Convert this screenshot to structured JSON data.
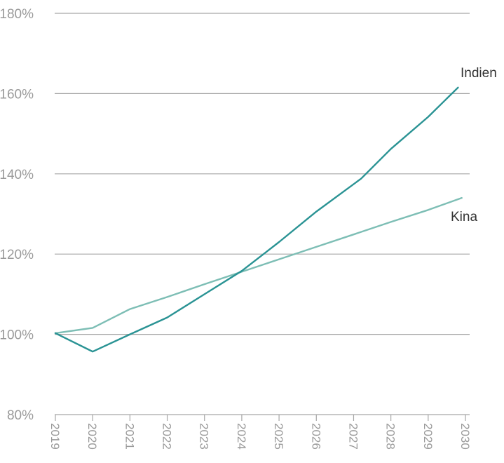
{
  "chart_data": {
    "type": "line",
    "x": [
      "2019",
      "2020",
      "2021",
      "2022",
      "2023",
      "2024",
      "2025",
      "2026",
      "2027",
      "2028",
      "2029",
      "2030"
    ],
    "x_values": [
      2019,
      2020,
      2021,
      2022,
      2023,
      2024,
      2025,
      2026,
      2027,
      2028,
      2029,
      2030
    ],
    "y_ticks": [
      80,
      100,
      120,
      140,
      160,
      180
    ],
    "y_tick_labels": [
      "80%",
      "100%",
      "120%",
      "140%",
      "160%",
      "180%"
    ],
    "ylim": [
      80,
      180
    ],
    "xlim": [
      2019,
      2030
    ],
    "grid": "horizontal",
    "legend": "inline labels at line ends",
    "series": [
      {
        "name": "Indien",
        "color": "#2a9394",
        "points": [
          [
            2019,
            100.3
          ],
          [
            2020,
            95.7
          ],
          [
            2021,
            100.0
          ],
          [
            2022,
            104.2
          ],
          [
            2023,
            110.0
          ],
          [
            2024,
            115.8
          ],
          [
            2025,
            123.0
          ],
          [
            2026,
            130.6
          ],
          [
            2027.2,
            138.8
          ],
          [
            2028,
            146.2
          ],
          [
            2029,
            154.2
          ],
          [
            2029.8,
            161.5
          ]
        ]
      },
      {
        "name": "Kina",
        "color": "#7dbeb5",
        "points": [
          [
            2019,
            100.3
          ],
          [
            2020,
            101.6
          ],
          [
            2021,
            106.3
          ],
          [
            2022,
            109.3
          ],
          [
            2023,
            112.5
          ],
          [
            2024,
            115.6
          ],
          [
            2025,
            118.7
          ],
          [
            2026,
            121.8
          ],
          [
            2027,
            124.9
          ],
          [
            2028,
            128.0
          ],
          [
            2029,
            131.0
          ],
          [
            2029.9,
            134.0
          ]
        ]
      }
    ]
  }
}
